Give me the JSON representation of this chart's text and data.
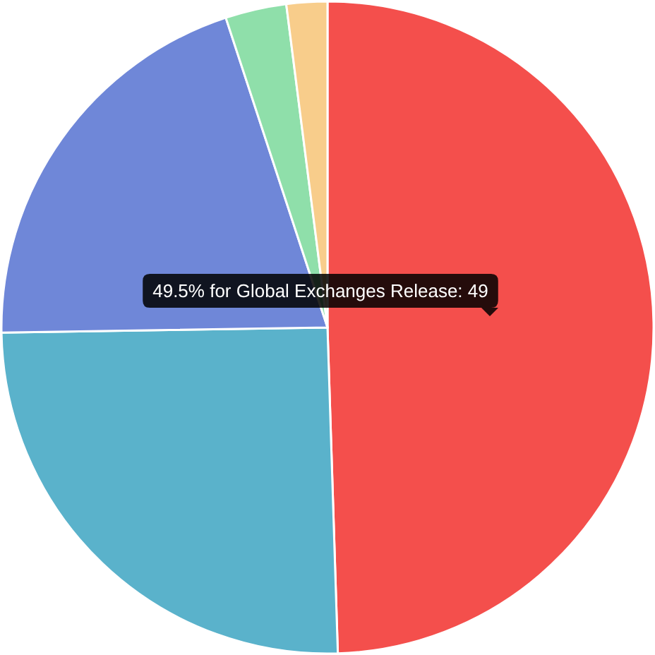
{
  "chart_data": {
    "type": "pie",
    "categories": [
      null,
      null,
      null,
      null,
      null
    ],
    "values": [
      49,
      25,
      20,
      3,
      2
    ],
    "colors": [
      "#f44f4c",
      "#5ab2cb",
      "#6f87d8",
      "#8fdfaa",
      "#f8cd8b"
    ],
    "annotations": [
      "49.5% for Global Exchanges Release: 49"
    ]
  }
}
